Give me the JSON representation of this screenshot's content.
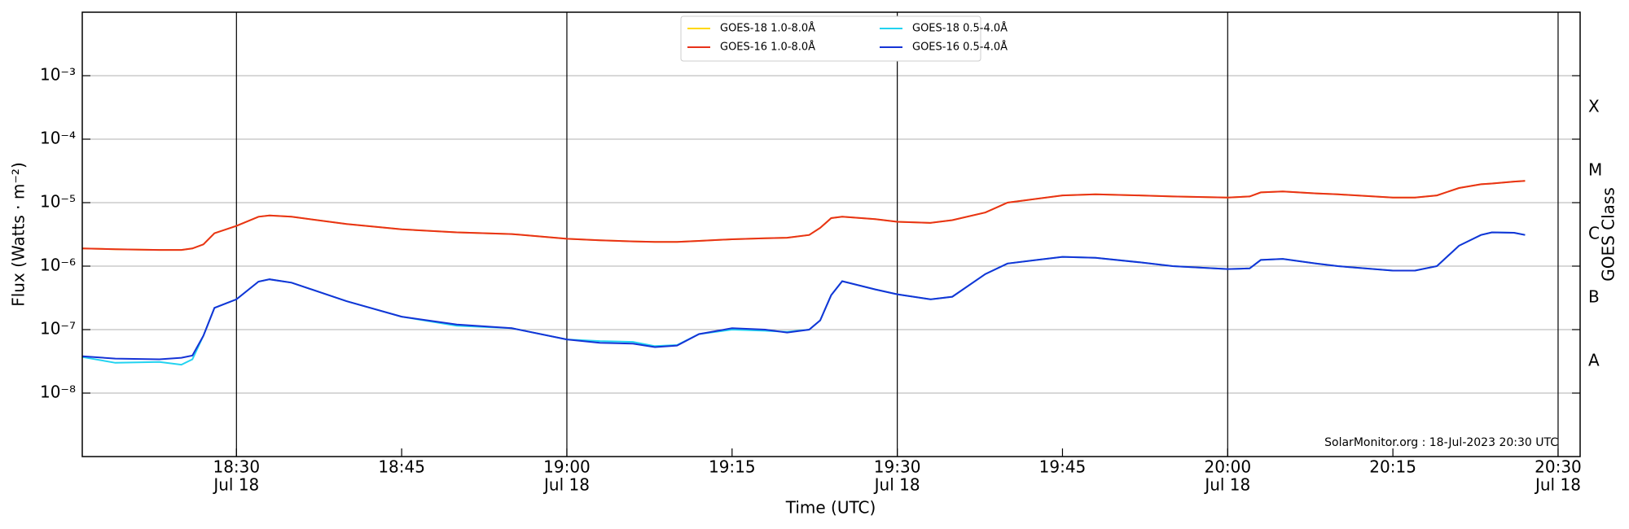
{
  "chart_data": {
    "type": "line",
    "xlabel": "Time (UTC)",
    "ylabel": "Flux (Watts · m⁻²)",
    "y2label": "GOES Class",
    "annotation": "SolarMonitor.org : 18-Jul-2023 20:30 UTC",
    "ylog": true,
    "legend": "upper center",
    "xlim": [
      "18:16",
      "20:32"
    ],
    "xticks": [
      {
        "value": "18:30",
        "label": "18:30",
        "date": "Jul 18"
      },
      {
        "value": "18:45",
        "label": "18:45"
      },
      {
        "value": "19:00",
        "label": "19:00",
        "date": "Jul 18"
      },
      {
        "value": "19:15",
        "label": "19:15"
      },
      {
        "value": "19:30",
        "label": "19:30",
        "date": "Jul 18"
      },
      {
        "value": "19:45",
        "label": "19:45"
      },
      {
        "value": "20:00",
        "label": "20:00",
        "date": "Jul 18"
      },
      {
        "value": "20:15",
        "label": "20:15"
      },
      {
        "value": "20:30",
        "label": "20:30",
        "date": "Jul 18"
      }
    ],
    "ylim": [
      1e-09,
      0.01
    ],
    "yticks": [
      {
        "value": 1e-08,
        "label": "10⁻⁸"
      },
      {
        "value": 1e-07,
        "label": "10⁻⁷"
      },
      {
        "value": 1e-06,
        "label": "10⁻⁶"
      },
      {
        "value": 1e-05,
        "label": "10⁻⁵"
      },
      {
        "value": 0.0001,
        "label": "10⁻⁴"
      },
      {
        "value": 0.001,
        "label": "10⁻³"
      }
    ],
    "y2lim": [
      1e-09,
      0.01
    ],
    "y2ticks": [
      {
        "value": 3.16e-08,
        "label": "A"
      },
      {
        "value": 3.16e-07,
        "label": "B"
      },
      {
        "value": 3.16e-06,
        "label": "C"
      },
      {
        "value": 3.16e-05,
        "label": "M"
      },
      {
        "value": 0.000316,
        "label": "X"
      }
    ],
    "x": [
      "18:16",
      "18:19",
      "18:23",
      "18:25",
      "18:26",
      "18:27",
      "18:28",
      "18:30",
      "18:32",
      "18:33",
      "18:35",
      "18:40",
      "18:45",
      "18:50",
      "18:55",
      "19:00",
      "19:03",
      "19:06",
      "19:08",
      "19:10",
      "19:12",
      "19:15",
      "19:18",
      "19:20",
      "19:22",
      "19:23",
      "19:24",
      "19:25",
      "19:28",
      "19:30",
      "19:33",
      "19:35",
      "19:38",
      "19:40",
      "19:45",
      "19:48",
      "19:52",
      "19:55",
      "20:00",
      "20:02",
      "20:03",
      "20:05",
      "20:08",
      "20:10",
      "20:15",
      "20:17",
      "20:19",
      "20:21",
      "20:23",
      "20:24",
      "20:26",
      "20:27"
    ],
    "series": [
      {
        "name": "GOES-18 1.0-8.0Å",
        "color": "#ffd700",
        "values": [
          1.9e-06,
          1.85e-06,
          1.8e-06,
          1.8e-06,
          1.9e-06,
          2.2e-06,
          3.3e-06,
          4.3e-06,
          6e-06,
          6.3e-06,
          6e-06,
          4.6e-06,
          3.8e-06,
          3.4e-06,
          3.2e-06,
          2.7e-06,
          2.55e-06,
          2.45e-06,
          2.4e-06,
          2.4e-06,
          2.5e-06,
          2.65e-06,
          2.75e-06,
          2.8e-06,
          3.1e-06,
          4e-06,
          5.7e-06,
          6e-06,
          5.5e-06,
          5e-06,
          4.8e-06,
          5.3e-06,
          7e-06,
          1e-05,
          1.3e-05,
          1.35e-05,
          1.3e-05,
          1.25e-05,
          1.2e-05,
          1.25e-05,
          1.45e-05,
          1.5e-05,
          1.4e-05,
          1.35e-05,
          1.2e-05,
          1.2e-05,
          1.3e-05,
          1.7e-05,
          1.95e-05,
          2e-05,
          2.15e-05,
          2.2e-05
        ]
      },
      {
        "name": "GOES-16 1.0-8.0Å",
        "color": "#e8311a",
        "values": [
          1.9e-06,
          1.85e-06,
          1.8e-06,
          1.8e-06,
          1.9e-06,
          2.2e-06,
          3.3e-06,
          4.3e-06,
          6e-06,
          6.3e-06,
          6e-06,
          4.6e-06,
          3.8e-06,
          3.4e-06,
          3.2e-06,
          2.7e-06,
          2.55e-06,
          2.45e-06,
          2.4e-06,
          2.4e-06,
          2.5e-06,
          2.65e-06,
          2.75e-06,
          2.8e-06,
          3.1e-06,
          4e-06,
          5.7e-06,
          6e-06,
          5.5e-06,
          5e-06,
          4.8e-06,
          5.3e-06,
          7e-06,
          1e-05,
          1.3e-05,
          1.35e-05,
          1.3e-05,
          1.25e-05,
          1.2e-05,
          1.25e-05,
          1.45e-05,
          1.5e-05,
          1.4e-05,
          1.35e-05,
          1.2e-05,
          1.2e-05,
          1.3e-05,
          1.7e-05,
          1.95e-05,
          2e-05,
          2.15e-05,
          2.2e-05
        ]
      },
      {
        "name": "GOES-18 0.5-4.0Å",
        "color": "#22d3f0",
        "values": [
          3.7e-08,
          3e-08,
          3.1e-08,
          2.8e-08,
          3.4e-08,
          8e-08,
          2.2e-07,
          3e-07,
          5.7e-07,
          6.2e-07,
          5.5e-07,
          2.8e-07,
          1.6e-07,
          1.15e-07,
          1.05e-07,
          7e-08,
          6.6e-08,
          6.4e-08,
          5.5e-08,
          5.7e-08,
          8.5e-08,
          1e-07,
          9.6e-08,
          9.2e-08,
          1e-07,
          1.4e-07,
          3.5e-07,
          5.8e-07,
          4.3e-07,
          3.6e-07,
          3e-07,
          3.3e-07,
          7.5e-07,
          1.1e-06,
          1.4e-06,
          1.35e-06,
          1.15e-06,
          1e-06,
          9e-07,
          9.2e-07,
          1.25e-06,
          1.3e-06,
          1.1e-06,
          1e-06,
          8.5e-07,
          8.5e-07,
          1e-06,
          2.1e-06,
          3.1e-06,
          3.4e-06,
          3.35e-06,
          3.1e-06
        ]
      },
      {
        "name": "GOES-16 0.5-4.0Å",
        "color": "#1533d6",
        "values": [
          3.8e-08,
          3.5e-08,
          3.4e-08,
          3.6e-08,
          3.9e-08,
          8e-08,
          2.2e-07,
          3e-07,
          5.7e-07,
          6.2e-07,
          5.5e-07,
          2.8e-07,
          1.6e-07,
          1.2e-07,
          1.05e-07,
          7e-08,
          6.2e-08,
          6e-08,
          5.3e-08,
          5.6e-08,
          8.5e-08,
          1.05e-07,
          1e-07,
          9e-08,
          1e-07,
          1.4e-07,
          3.5e-07,
          5.8e-07,
          4.3e-07,
          3.6e-07,
          3e-07,
          3.3e-07,
          7.5e-07,
          1.1e-06,
          1.4e-06,
          1.35e-06,
          1.15e-06,
          1e-06,
          9e-07,
          9.2e-07,
          1.25e-06,
          1.3e-06,
          1.1e-06,
          1e-06,
          8.5e-07,
          8.5e-07,
          1e-06,
          2.1e-06,
          3.1e-06,
          3.4e-06,
          3.35e-06,
          3.1e-06
        ]
      }
    ]
  }
}
